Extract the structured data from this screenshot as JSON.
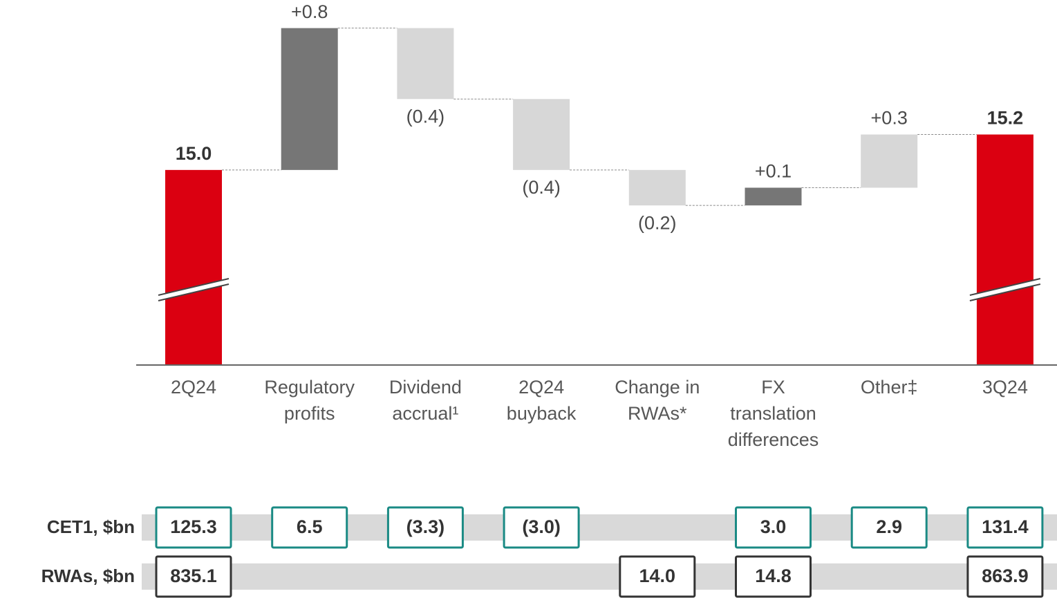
{
  "chart_data": {
    "type": "waterfall",
    "categories": [
      [
        "2Q24"
      ],
      [
        "Regulatory",
        "profits"
      ],
      [
        "Dividend",
        "accrual¹"
      ],
      [
        "2Q24",
        "buyback"
      ],
      [
        "Change in",
        "RWAs*"
      ],
      [
        "FX",
        "translation",
        "differences"
      ],
      [
        "Other‡"
      ],
      [
        "3Q24"
      ]
    ],
    "values": [
      15.0,
      0.8,
      -0.4,
      -0.4,
      -0.2,
      0.1,
      0.3,
      15.2
    ],
    "value_labels": [
      "15.0",
      "+0.8",
      "(0.4)",
      "(0.4)",
      "(0.2)",
      "+0.1",
      "+0.3",
      "15.2"
    ],
    "totals": [
      true,
      false,
      false,
      false,
      false,
      false,
      false,
      true
    ],
    "colors": [
      "#db0011",
      "#767676",
      "#d7d7d7",
      "#d7d7d7",
      "#d7d7d7",
      "#767676",
      "#d7d7d7",
      "#db0011"
    ],
    "ylim": [
      13.9,
      15.9
    ],
    "axis_break": true
  },
  "table": {
    "rows": [
      {
        "label": "CET1, $bn",
        "border": "#1a8a84",
        "cells": [
          "125.3",
          "6.5",
          "(3.3)",
          "(3.0)",
          null,
          "3.0",
          "2.9",
          "131.4"
        ]
      },
      {
        "label": "RWAs, $bn",
        "border": "#333333",
        "cells": [
          "835.1",
          null,
          null,
          null,
          "14.0",
          "14.8",
          null,
          "863.9"
        ]
      }
    ]
  }
}
